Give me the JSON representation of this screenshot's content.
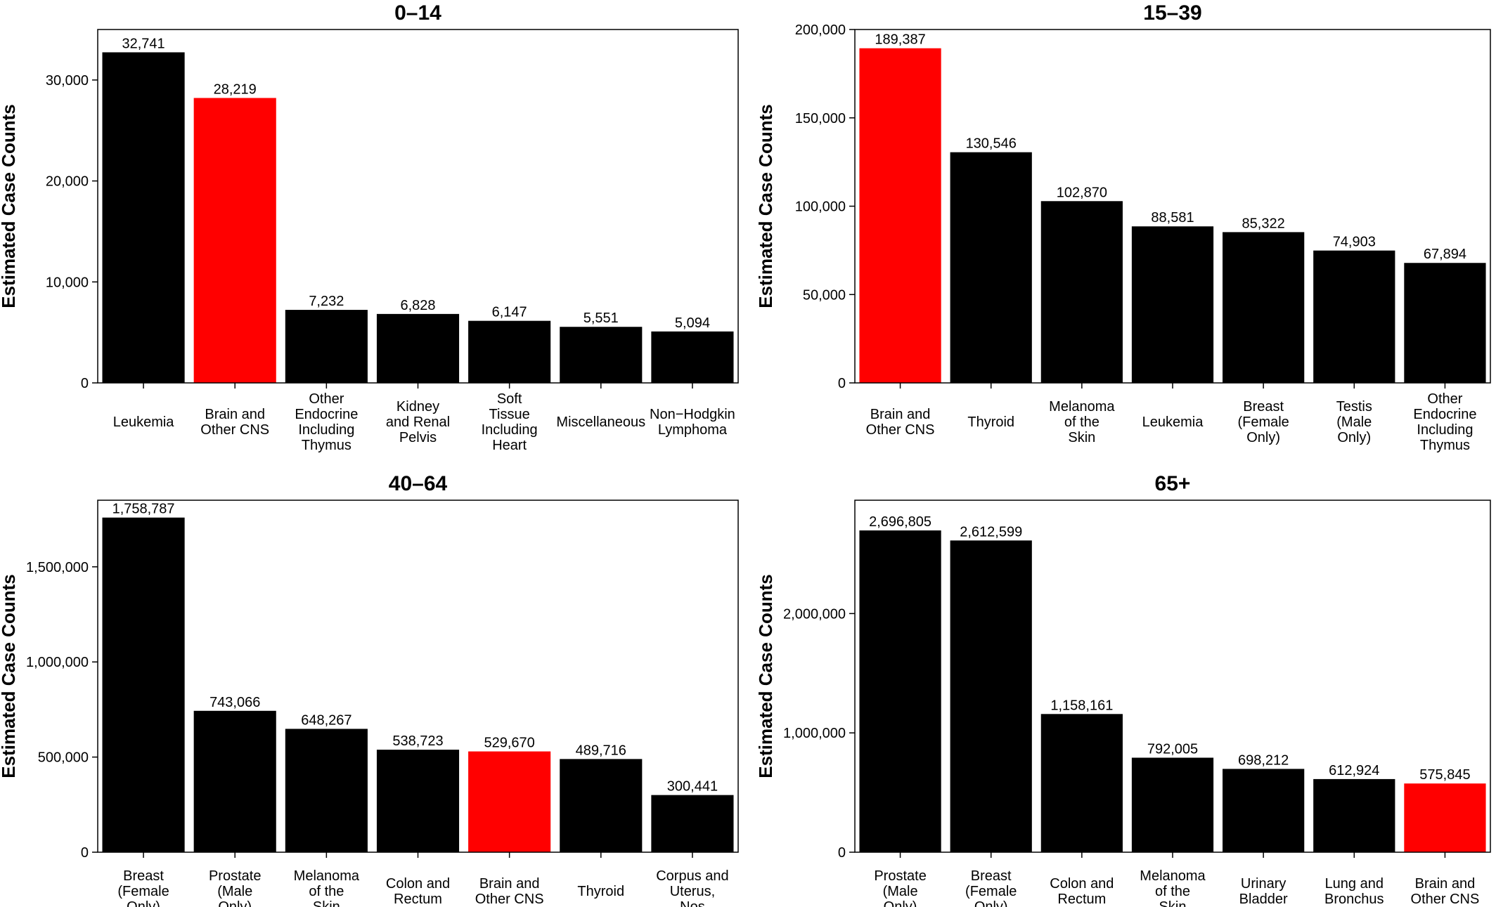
{
  "highlight_color": "#ff0000",
  "bar_color": "#000000",
  "chart_data": [
    {
      "type": "bar",
      "title": "0–14",
      "ylabel": "Estimated Case Counts",
      "xlabel": "",
      "ylim": [
        0,
        35000
      ],
      "yticks": [
        0,
        10000,
        20000,
        30000
      ],
      "ytick_labels": [
        "0",
        "10,000",
        "20,000",
        "30,000"
      ],
      "categories": [
        "Leukemia",
        "Brain and\nOther CNS",
        "Other\nEndocrine\nIncluding\nThymus",
        "Kidney\nand Renal\nPelvis",
        "Soft\nTissue\nIncluding\nHeart",
        "Miscellaneous",
        "Non−Hodgkin\nLymphoma"
      ],
      "values": [
        32741,
        28219,
        7232,
        6828,
        6147,
        5551,
        5094
      ],
      "value_labels": [
        "32,741",
        "28,219",
        "7,232",
        "6,828",
        "6,147",
        "5,551",
        "5,094"
      ],
      "highlight": [
        1
      ],
      "grid": false
    },
    {
      "type": "bar",
      "title": "15–39",
      "ylabel": "Estimated Case Counts",
      "xlabel": "",
      "ylim": [
        0,
        200000
      ],
      "yticks": [
        0,
        50000,
        100000,
        150000,
        200000
      ],
      "ytick_labels": [
        "0",
        "50,000",
        "100,000",
        "150,000",
        "200,000"
      ],
      "categories": [
        "Brain and\nOther CNS",
        "Thyroid",
        "Melanoma\nof the\nSkin",
        "Leukemia",
        "Breast\n(Female\nOnly)",
        "Testis\n(Male\nOnly)",
        "Other\nEndocrine\nIncluding\nThymus"
      ],
      "values": [
        189387,
        130546,
        102870,
        88581,
        85322,
        74903,
        67894
      ],
      "value_labels": [
        "189,387",
        "130,546",
        "102,870",
        "88,581",
        "85,322",
        "74,903",
        "67,894"
      ],
      "highlight": [
        0
      ],
      "grid": false
    },
    {
      "type": "bar",
      "title": "40–64",
      "ylabel": "Estimated Case Counts",
      "xlabel": "",
      "ylim": [
        0,
        1850000
      ],
      "yticks": [
        0,
        500000,
        1000000,
        1500000
      ],
      "ytick_labels": [
        "0",
        "500,000",
        "1,000,000",
        "1,500,000"
      ],
      "categories": [
        "Breast\n(Female\nOnly)",
        "Prostate\n(Male\nOnly)",
        "Melanoma\nof the\nSkin",
        "Colon and\nRectum",
        "Brain and\nOther CNS",
        "Thyroid",
        "Corpus and\nUterus,\nNos"
      ],
      "values": [
        1758787,
        743066,
        648267,
        538723,
        529670,
        489716,
        300441
      ],
      "value_labels": [
        "1,758,787",
        "743,066",
        "648,267",
        "538,723",
        "529,670",
        "489,716",
        "300,441"
      ],
      "highlight": [
        4
      ],
      "grid": false
    },
    {
      "type": "bar",
      "title": "65+",
      "ylabel": "Estimated Case Counts",
      "xlabel": "",
      "ylim": [
        0,
        2950000
      ],
      "yticks": [
        0,
        1000000,
        2000000
      ],
      "ytick_labels": [
        "0",
        "1,000,000",
        "2,000,000"
      ],
      "categories": [
        "Prostate\n(Male\nOnly)",
        "Breast\n(Female\nOnly)",
        "Colon and\nRectum",
        "Melanoma\nof the\nSkin",
        "Urinary\nBladder",
        "Lung and\nBronchus",
        "Brain and\nOther CNS"
      ],
      "values": [
        2696805,
        2612599,
        1158161,
        792005,
        698212,
        612924,
        575845
      ],
      "value_labels": [
        "2,696,805",
        "2,612,599",
        "1,158,161",
        "792,005",
        "698,212",
        "612,924",
        "575,845"
      ],
      "highlight": [
        6
      ],
      "grid": false
    }
  ]
}
